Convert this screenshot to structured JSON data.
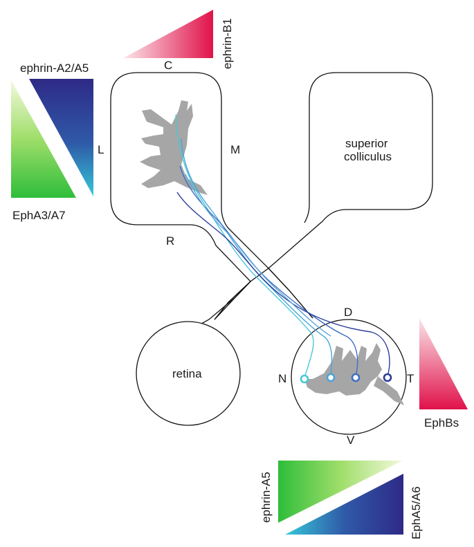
{
  "labels": {
    "ephrin_b1": "ephrin-B1",
    "ephrin_a2_a5": "ephrin-A2/A5",
    "epha3_a7": "EphA3/A7",
    "c": "C",
    "l": "L",
    "m": "M",
    "r": "R",
    "superior_colliculus_line1": "superior",
    "superior_colliculus_line2": "colliculus",
    "retina": "retina",
    "d": "D",
    "n": "N",
    "t": "T",
    "v": "V",
    "ephbs": "EphBs",
    "ephrin_a5": "ephrin-A5",
    "epha5_a6": "EphA5/A6"
  },
  "colors": {
    "ephrin_b_red": "#e0124a",
    "ephrin_a_blue": "#2e2a86",
    "epha_green": "#2ebd3a",
    "cyan": "#35c7d8",
    "cat_gray": "#a6a6a6",
    "outline": "#111111"
  },
  "axons": [
    {
      "color": "#48c7d6",
      "retina_position": "nasal"
    },
    {
      "color": "#4aa3d9",
      "retina_position": "nasal-mid"
    },
    {
      "color": "#3e6fc4",
      "retina_position": "temporal-mid"
    },
    {
      "color": "#2c3c9a",
      "retina_position": "temporal"
    }
  ]
}
